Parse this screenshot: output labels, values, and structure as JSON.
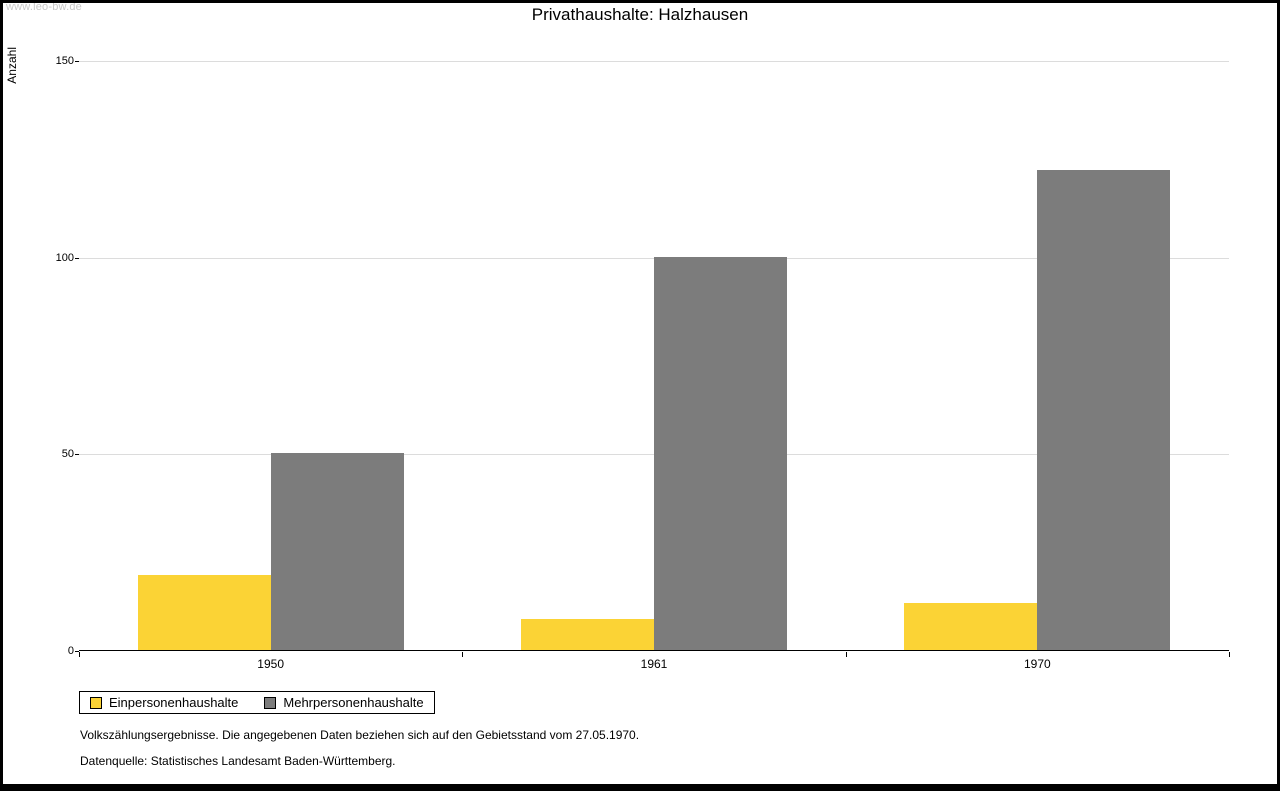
{
  "watermark": "www.leo-bw.de",
  "chart_data": {
    "type": "bar",
    "title": "Privathaushalte:  Halzhausen",
    "xlabel": "",
    "ylabel": "Anzahl",
    "categories": [
      "1950",
      "1961",
      "1970"
    ],
    "series": [
      {
        "name": "Einpersonenhaushalte",
        "color": "#fbd335",
        "values": [
          19,
          8,
          12
        ]
      },
      {
        "name": "Mehrpersonenhaushalte",
        "color": "#7c7c7c",
        "values": [
          50,
          100,
          122
        ]
      }
    ],
    "ylim": [
      0,
      150
    ],
    "yticks": [
      0,
      50,
      100,
      150
    ],
    "grid": true,
    "legend_position": "bottom-left"
  },
  "footnotes": [
    "Volkszählungsergebnisse. Die angegebenen Daten beziehen sich auf den Gebietsstand vom 27.05.1970.",
    "Datenquelle: Statistisches Landesamt Baden-Württemberg."
  ]
}
